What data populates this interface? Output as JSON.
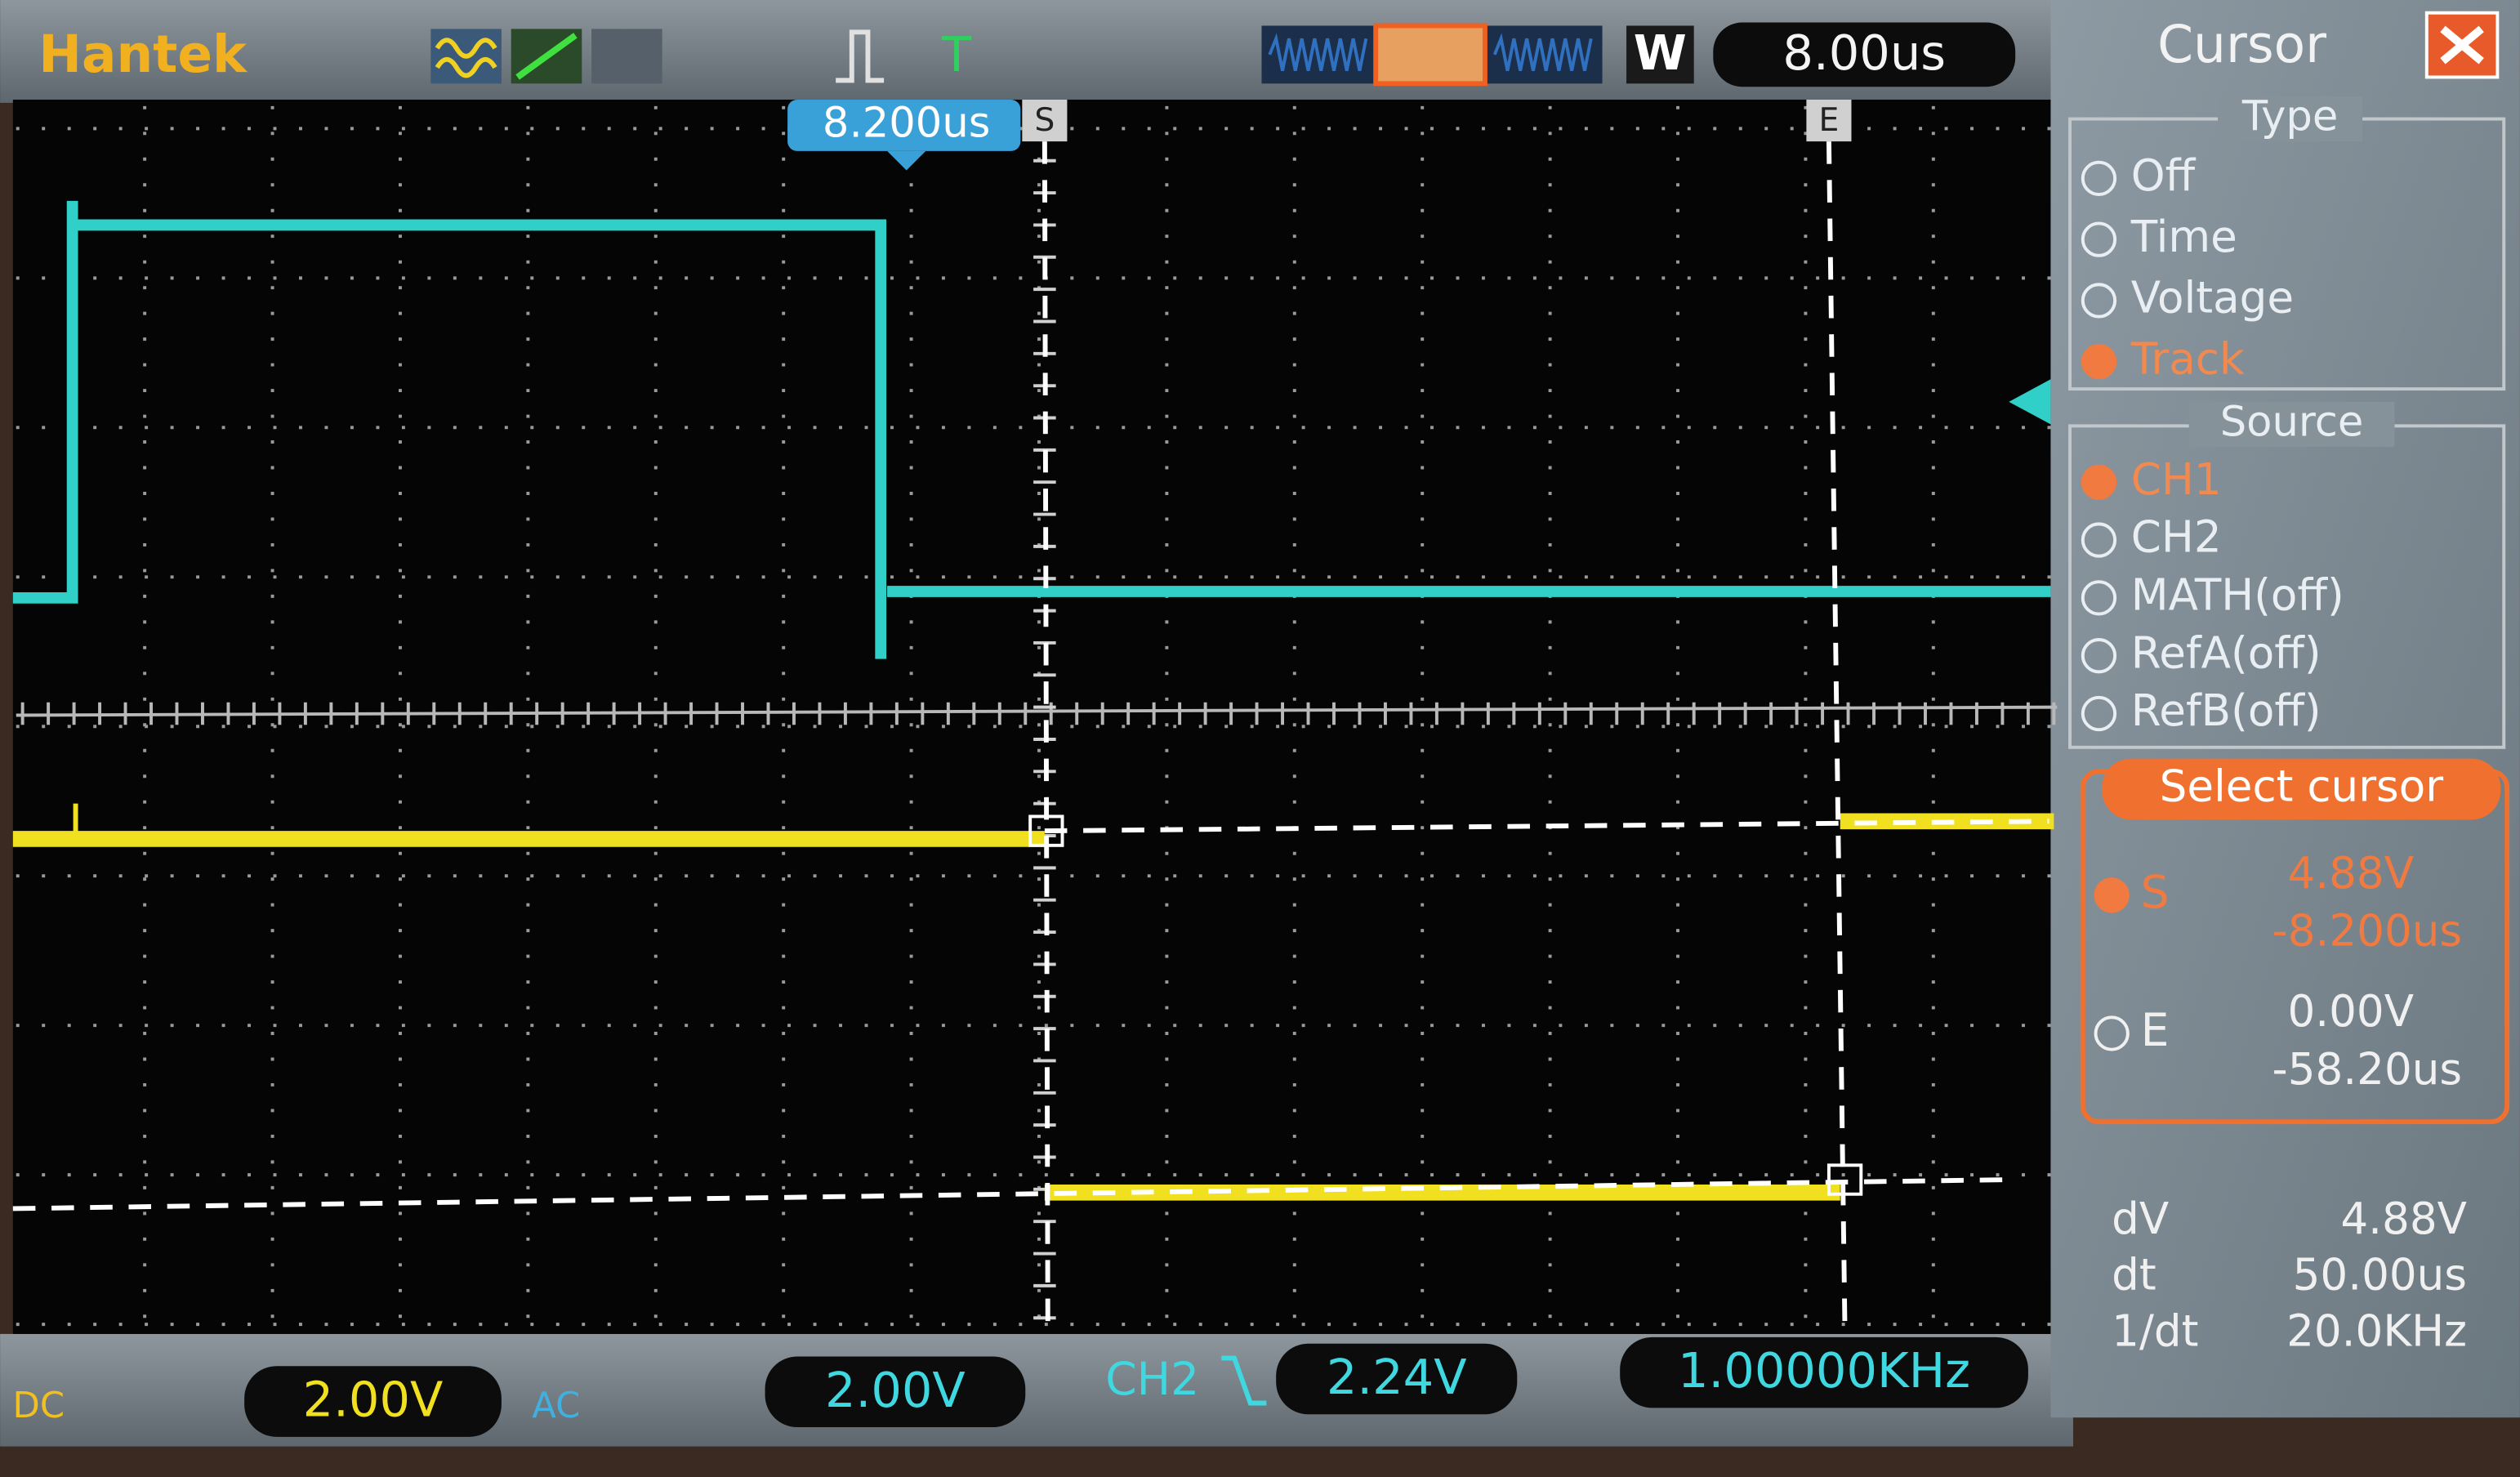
{
  "header": {
    "brand": "Hantek",
    "mode": "W",
    "timebase": "8.00us",
    "trigger_offset": "8.200us",
    "cursor_s": "S",
    "cursor_e": "E"
  },
  "panel": {
    "title": "Cursor",
    "type_title": "Type",
    "type_options": [
      "Off",
      "Time",
      "Voltage",
      "Track"
    ],
    "source_title": "Source",
    "source_options": [
      "CH1",
      "CH2",
      "MATH(off)",
      "RefA(off)",
      "RefB(off)"
    ],
    "select_title": "Select cursor",
    "cursors": [
      {
        "name": "S",
        "voltage": "4.88V",
        "time": "-8.200us"
      },
      {
        "name": "E",
        "voltage": "0.00V",
        "time": "-58.20us"
      }
    ],
    "deltas": [
      {
        "label": "dV",
        "value": "4.88V"
      },
      {
        "label": "dt",
        "value": "50.00us"
      },
      {
        "label": "1/dt",
        "value": "20.0KHz"
      }
    ]
  },
  "footer": {
    "ch1_coupling": "DC",
    "ch1_scale": "2.00V",
    "ch2_coupling": "AC",
    "ch2_scale": "2.00V",
    "trigger_source": "CH2",
    "trigger_level": "2.24V",
    "frequency": "1.00000KHz"
  }
}
